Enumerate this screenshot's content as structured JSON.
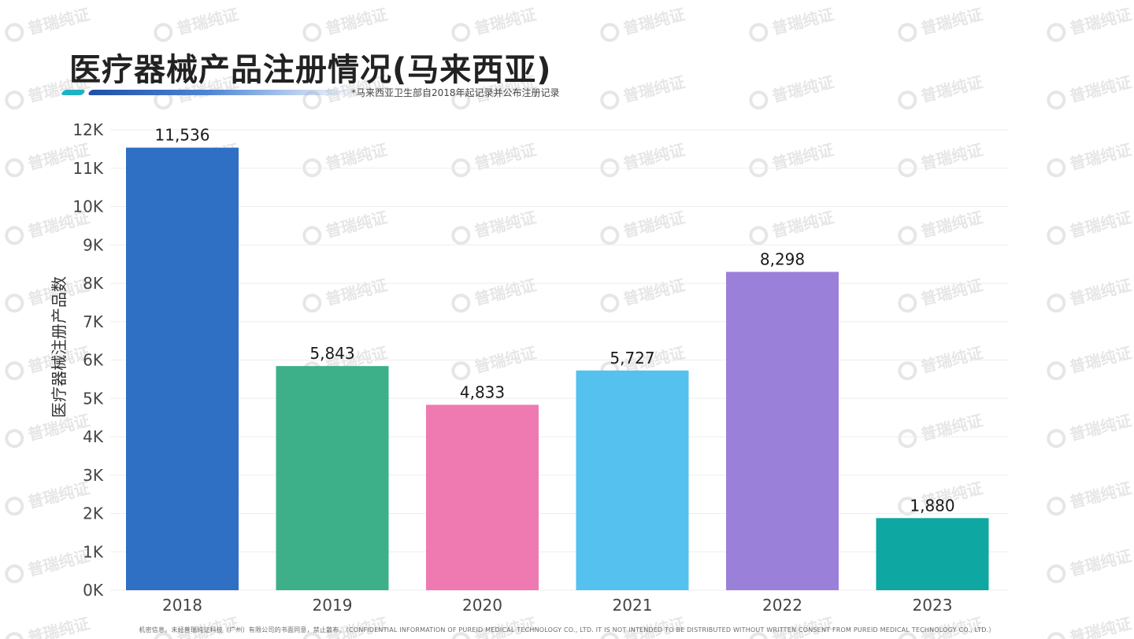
{
  "page": {
    "title": "医疗器械产品注册情况(马来西亚)",
    "subtitle": "*马来西亚卫生部自2018年起记录并公布注册记录",
    "footer": "机密信息。未经普瑞纯证科技（广州）有限公司的书面同意，禁止散布。（CONFIDENTIAL INFORMATION OF PUREID MEDICAL TECHNOLOGY CO., LTD. IT IS NOT INTENDED TO BE DISTRIBUTED WITHOUT WRITTEN CONSENT FROM PUREID MEDICAL TECHNOLOGY CO., LTD.）",
    "watermark": "普瑞纯证"
  },
  "chart_data": {
    "type": "bar",
    "title": "医疗器械产品注册情况(马来西亚)",
    "subtitle": "*马来西亚卫生部自2018年起记录并公布注册记录",
    "xlabel": "",
    "ylabel": "医疗器械注册产品数",
    "categories": [
      "2018",
      "2019",
      "2020",
      "2021",
      "2022",
      "2023"
    ],
    "values": [
      11536,
      5843,
      4833,
      5727,
      8298,
      1880
    ],
    "data_labels": [
      "11,536",
      "5,843",
      "4,833",
      "5,727",
      "8,298",
      "1,880"
    ],
    "colors": [
      "#2f6fc4",
      "#3daf89",
      "#ef7ab1",
      "#54c1ee",
      "#9b80d9",
      "#0ea7a2"
    ],
    "ylim": [
      0,
      12000
    ],
    "yticks": [
      0,
      1000,
      2000,
      3000,
      4000,
      5000,
      6000,
      7000,
      8000,
      9000,
      10000,
      11000,
      12000
    ],
    "ytick_labels": [
      "0K",
      "1K",
      "2K",
      "3K",
      "4K",
      "5K",
      "6K",
      "7K",
      "8K",
      "9K",
      "10K",
      "11K",
      "12K"
    ],
    "grid": true,
    "legend": "none"
  }
}
